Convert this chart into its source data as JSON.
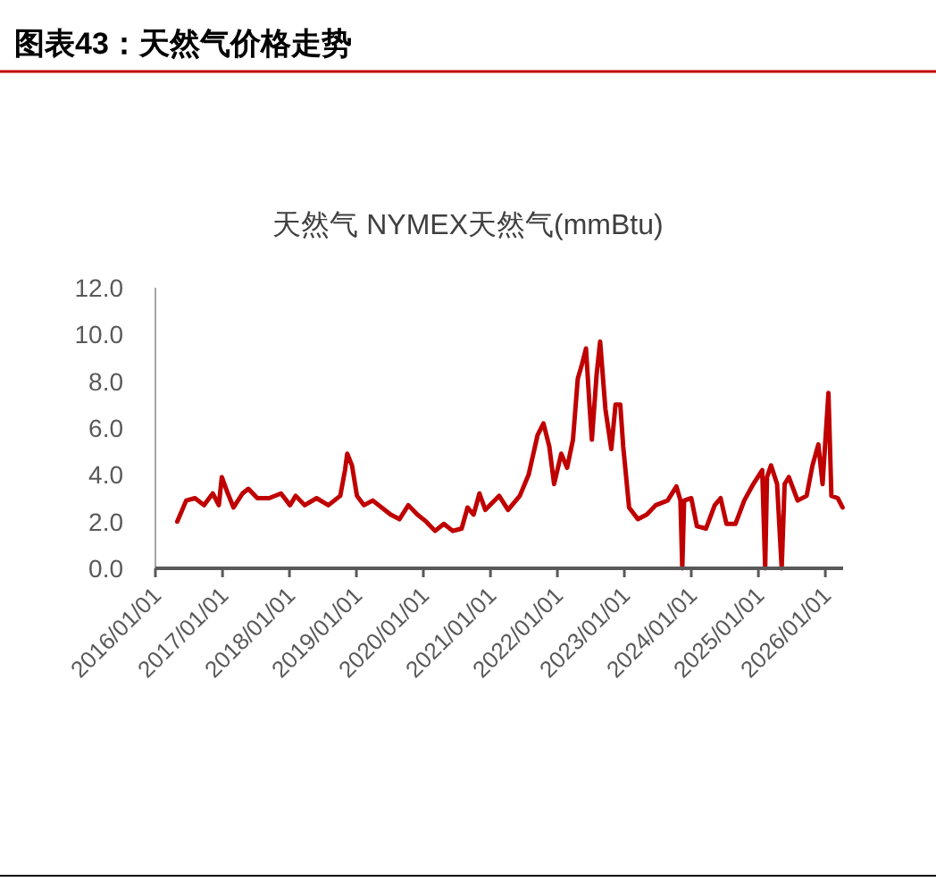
{
  "chart_data": {
    "type": "line",
    "title": "图表43：天然气价格走势",
    "subtitle": "天然气 NYMEX天然气(mmBtu)",
    "x": [
      "2016-04-29",
      "2016-06-17",
      "2016-08-04",
      "2016-09-22",
      "2016-11-09",
      "2016-12-12",
      "2016-12-28",
      "2017-01-30",
      "2017-03-02",
      "2017-04-20",
      "2017-05-22",
      "2017-07-10",
      "2017-09-12",
      "2017-11-16",
      "2018-01-04",
      "2018-02-04",
      "2018-03-25",
      "2018-05-29",
      "2018-08-01",
      "2018-10-05",
      "2018-10-31",
      "2018-11-12",
      "2018-12-08",
      "2019-01-04",
      "2019-02-11",
      "2019-03-31",
      "2019-05-19",
      "2019-07-06",
      "2019-08-24",
      "2019-10-11",
      "2019-11-29",
      "2020-01-16",
      "2020-03-05",
      "2020-04-22",
      "2020-06-09",
      "2020-07-28",
      "2020-08-29",
      "2020-10-01",
      "2020-11-02",
      "2020-12-04",
      "2021-02-17",
      "2021-04-07",
      "2021-06-10",
      "2021-07-28",
      "2021-09-15",
      "2021-10-17",
      "2021-11-18",
      "2021-12-14",
      "2022-01-22",
      "2022-02-23",
      "2022-03-27",
      "2022-04-22",
      "2022-05-14",
      "2022-06-06",
      "2022-06-25",
      "2022-07-08",
      "2022-08-03",
      "2022-08-22",
      "2022-09-20",
      "2022-10-22",
      "2022-11-14",
      "2022-12-10",
      "2022-12-26",
      "2023-01-27",
      "2023-03-16",
      "2023-05-04",
      "2023-06-21",
      "2023-08-25",
      "2023-10-12",
      "2023-11-03",
      "2023-11-13",
      "2023-11-23",
      "2024-01-01",
      "2024-02-01",
      "2024-03-21",
      "2024-05-08",
      "2024-06-09",
      "2024-07-11",
      "2024-08-29",
      "2024-10-16",
      "2024-12-04",
      "2025-01-22",
      "2025-02-07",
      "2025-02-17",
      "2025-03-11",
      "2025-04-13",
      "2025-05-08",
      "2025-05-24",
      "2025-06-16",
      "2025-08-03",
      "2025-09-21",
      "2025-10-23",
      "2025-11-24",
      "2025-12-17",
      "2026-01-18",
      "2026-02-03",
      "2026-03-10",
      "2026-04-05"
    ],
    "series": [
      {
        "color": "#c00000",
        "values": [
          2.0,
          2.9,
          3.0,
          2.7,
          3.2,
          2.7,
          3.9,
          3.2,
          2.6,
          3.2,
          3.4,
          3.0,
          3.0,
          3.2,
          2.7,
          3.1,
          2.7,
          3.0,
          2.7,
          3.1,
          4.2,
          4.9,
          4.4,
          3.1,
          2.7,
          2.9,
          2.6,
          2.3,
          2.1,
          2.7,
          2.3,
          2.0,
          1.6,
          1.9,
          1.6,
          1.7,
          2.6,
          2.3,
          3.2,
          2.5,
          3.1,
          2.5,
          3.1,
          4.0,
          5.7,
          6.2,
          5.2,
          3.6,
          4.9,
          4.3,
          5.5,
          8.1,
          8.7,
          9.4,
          7.0,
          5.5,
          8.3,
          9.7,
          6.8,
          5.1,
          7.0,
          7.0,
          5.2,
          2.6,
          2.1,
          2.3,
          2.7,
          2.9,
          3.5,
          2.9,
          0,
          2.9,
          3.0,
          1.8,
          1.7,
          2.7,
          3.0,
          1.9,
          1.9,
          2.9,
          3.6,
          4.2,
          0,
          3.9,
          4.4,
          3.6,
          0,
          3.6,
          3.9,
          2.9,
          3.1,
          4.4,
          5.3,
          3.6,
          7.5,
          3.1,
          3.0,
          2.6
        ]
      }
    ],
    "xlim": [
      "2016-01-01",
      "2026-04-08"
    ],
    "xticks": [
      {
        "value": "2016-01-01",
        "label": "2016/01/01"
      },
      {
        "value": "2017-01-01",
        "label": "2017/01/01"
      },
      {
        "value": "2018-01-01",
        "label": "2018/01/01"
      },
      {
        "value": "2019-01-01",
        "label": "2019/01/01"
      },
      {
        "value": "2020-01-01",
        "label": "2020/01/01"
      },
      {
        "value": "2021-01-01",
        "label": "2021/01/01"
      },
      {
        "value": "2022-01-01",
        "label": "2022/01/01"
      },
      {
        "value": "2023-01-01",
        "label": "2023/01/01"
      },
      {
        "value": "2024-01-01",
        "label": "2024/01/01"
      },
      {
        "value": "2025-01-01",
        "label": "2025/01/01"
      },
      {
        "value": "2026-01-01",
        "label": "2026/01/01"
      }
    ],
    "ylim": [
      0,
      12
    ],
    "yticks": [
      {
        "value": 0,
        "label": "0.0"
      },
      {
        "value": 2,
        "label": "2.0"
      },
      {
        "value": 4,
        "label": "4.0"
      },
      {
        "value": 6,
        "label": "6.0"
      },
      {
        "value": 8,
        "label": "8.0"
      },
      {
        "value": 10,
        "label": "10.0"
      },
      {
        "value": 12,
        "label": "12.0"
      }
    ],
    "grid": false
  }
}
